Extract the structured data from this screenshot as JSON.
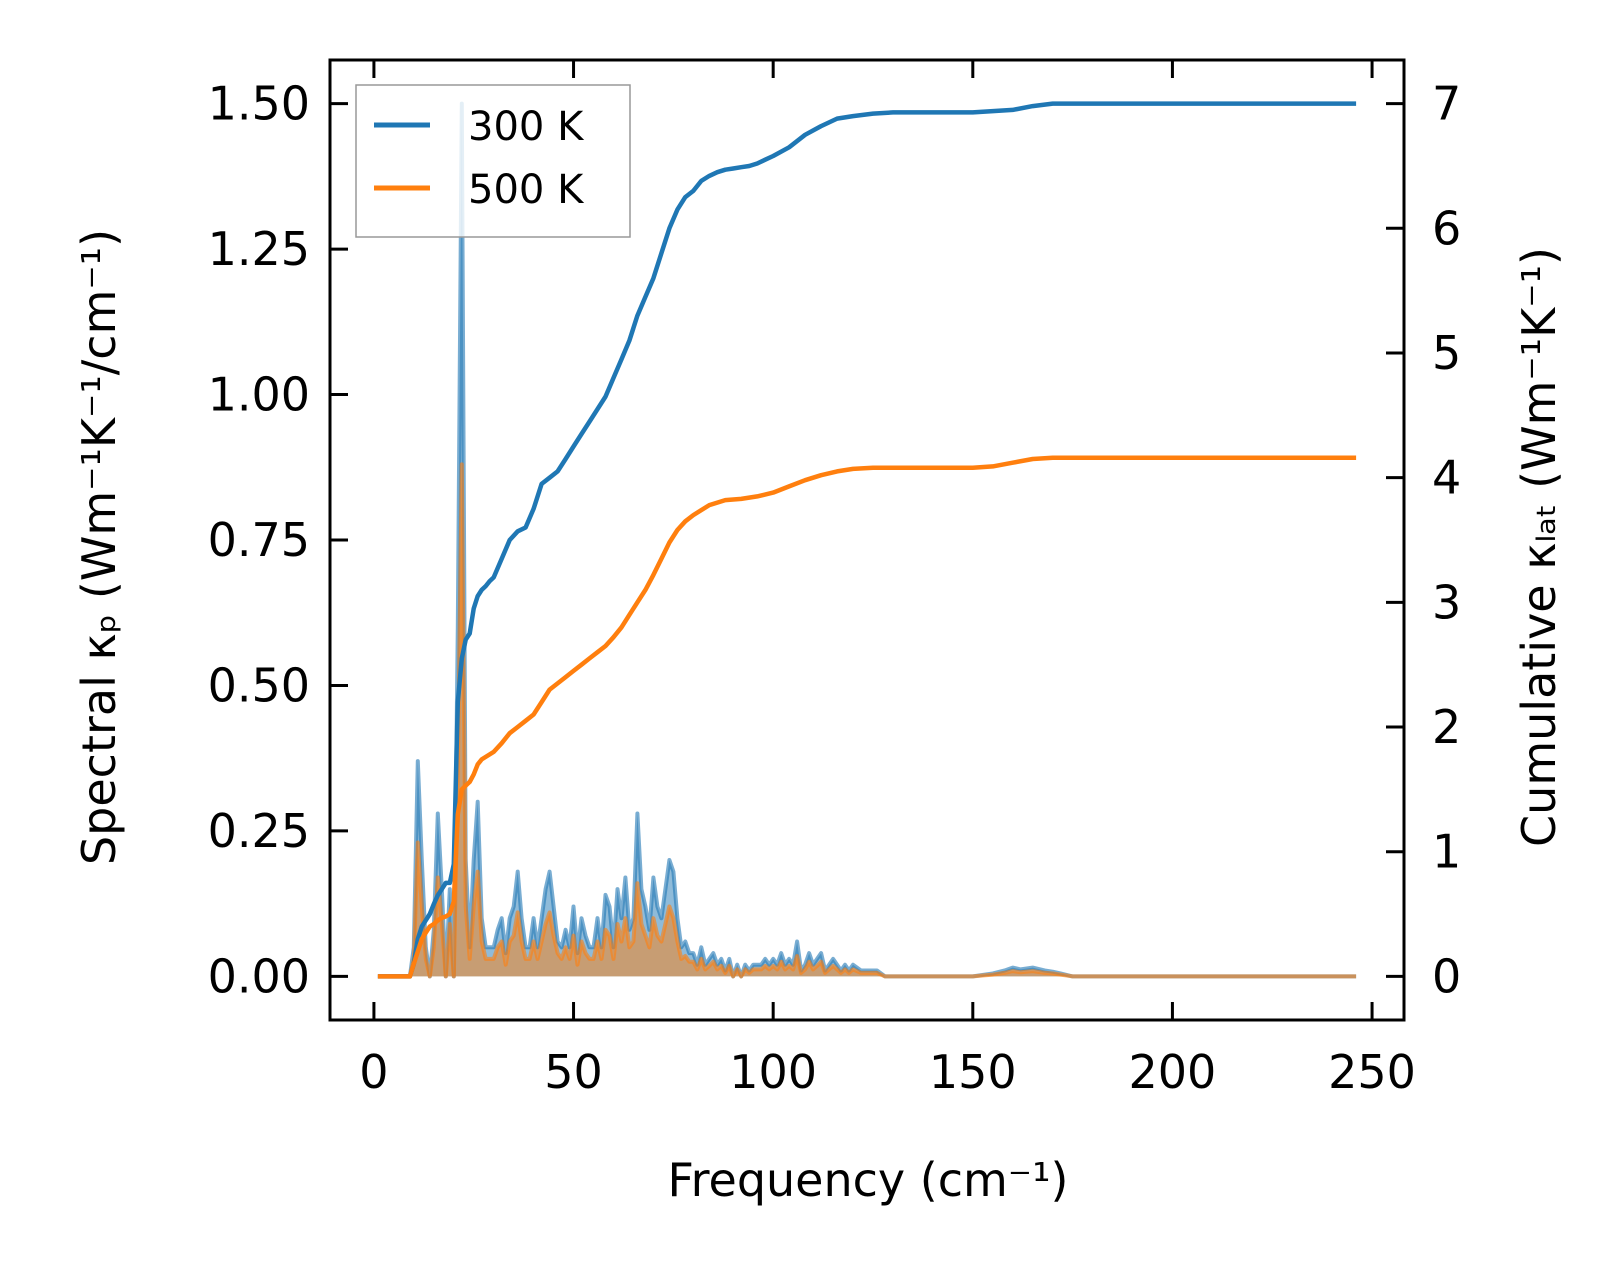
{
  "chart_data": {
    "type": "line",
    "title": "",
    "xlabel": "Frequency (cm⁻¹)",
    "ylabel_left": "Spectral κₚ (Wm⁻¹K⁻¹/cm⁻¹)",
    "ylabel_right": "Cumulative κₗₐₜ (Wm⁻¹K⁻¹)",
    "xlim": [
      -11,
      258
    ],
    "ylim_left": [
      -0.075,
      1.575
    ],
    "ylim_right": [
      -0.35,
      7.35
    ],
    "x_ticks": [
      0,
      50,
      100,
      150,
      200,
      250
    ],
    "x_tick_labels": [
      "0",
      "50",
      "100",
      "150",
      "200",
      "250"
    ],
    "y_left_ticks": [
      0,
      0.25,
      0.5,
      0.75,
      1.0,
      1.25,
      1.5
    ],
    "y_left_tick_labels": [
      "0.00",
      "0.25",
      "0.50",
      "0.75",
      "1.00",
      "1.25",
      "1.50"
    ],
    "y_right_ticks": [
      0,
      1,
      2,
      3,
      4,
      5,
      6,
      7
    ],
    "y_right_tick_labels": [
      "0",
      "1",
      "2",
      "3",
      "4",
      "5",
      "6",
      "7"
    ],
    "legend": {
      "position": "top-left",
      "entries": [
        {
          "label": "300 K",
          "color": "#1f77b4"
        },
        {
          "label": "500 K",
          "color": "#ff7f0e"
        }
      ]
    },
    "series": [
      {
        "name": "300 K",
        "color": "#1f77b4",
        "axis": "right",
        "kind": "cumulative",
        "x": [
          1,
          9,
          10,
          11,
          12,
          13,
          14,
          15,
          16,
          17,
          18,
          19,
          20,
          21,
          22,
          23,
          24,
          25,
          26,
          27,
          28,
          29,
          30,
          32,
          34,
          36,
          38,
          40,
          42,
          44,
          46,
          48,
          50,
          52,
          54,
          56,
          58,
          60,
          62,
          64,
          66,
          68,
          70,
          72,
          74,
          76,
          78,
          80,
          82,
          84,
          86,
          88,
          90,
          92,
          94,
          96,
          98,
          100,
          104,
          108,
          112,
          116,
          120,
          125,
          130,
          140,
          150,
          155,
          160,
          165,
          170,
          180,
          200,
          246
        ],
        "values": [
          0,
          0,
          0.1,
          0.3,
          0.4,
          0.45,
          0.5,
          0.58,
          0.65,
          0.7,
          0.75,
          0.75,
          0.9,
          2.2,
          2.55,
          2.7,
          2.75,
          2.95,
          3.05,
          3.1,
          3.13,
          3.17,
          3.2,
          3.35,
          3.5,
          3.57,
          3.6,
          3.75,
          3.95,
          4.0,
          4.05,
          4.15,
          4.25,
          4.35,
          4.45,
          4.55,
          4.65,
          4.8,
          4.95,
          5.1,
          5.3,
          5.45,
          5.6,
          5.8,
          6.0,
          6.15,
          6.25,
          6.3,
          6.38,
          6.42,
          6.45,
          6.47,
          6.48,
          6.49,
          6.5,
          6.52,
          6.55,
          6.58,
          6.65,
          6.75,
          6.82,
          6.88,
          6.9,
          6.92,
          6.93,
          6.93,
          6.93,
          6.94,
          6.95,
          6.98,
          7.0,
          7.0,
          7.0,
          7.0
        ]
      },
      {
        "name": "500 K",
        "color": "#ff7f0e",
        "axis": "right",
        "kind": "cumulative",
        "x": [
          1,
          9,
          10,
          11,
          12,
          13,
          14,
          15,
          16,
          17,
          18,
          19,
          20,
          21,
          22,
          23,
          24,
          25,
          26,
          27,
          28,
          30,
          32,
          34,
          36,
          38,
          40,
          42,
          44,
          46,
          48,
          50,
          52,
          54,
          56,
          58,
          60,
          62,
          64,
          66,
          68,
          70,
          72,
          74,
          76,
          78,
          80,
          84,
          88,
          92,
          96,
          100,
          104,
          108,
          112,
          116,
          120,
          125,
          130,
          140,
          150,
          155,
          160,
          165,
          170,
          180,
          200,
          246
        ],
        "values": [
          0,
          0,
          0.1,
          0.2,
          0.3,
          0.35,
          0.4,
          0.42,
          0.45,
          0.47,
          0.48,
          0.5,
          0.6,
          1.3,
          1.5,
          1.53,
          1.56,
          1.62,
          1.7,
          1.74,
          1.76,
          1.8,
          1.87,
          1.95,
          2.0,
          2.05,
          2.1,
          2.2,
          2.3,
          2.35,
          2.4,
          2.45,
          2.5,
          2.55,
          2.6,
          2.65,
          2.72,
          2.8,
          2.9,
          3.0,
          3.1,
          3.22,
          3.35,
          3.48,
          3.58,
          3.65,
          3.7,
          3.78,
          3.82,
          3.83,
          3.85,
          3.88,
          3.93,
          3.98,
          4.02,
          4.05,
          4.07,
          4.08,
          4.08,
          4.08,
          4.08,
          4.09,
          4.12,
          4.15,
          4.16,
          4.16,
          4.16,
          4.16
        ]
      },
      {
        "name": "300 K spectral",
        "color": "#1f77b4",
        "axis": "left",
        "kind": "spectral",
        "x": [
          1,
          9,
          10,
          11,
          12,
          13,
          14,
          15,
          16,
          17,
          18,
          19,
          20,
          21,
          22,
          23,
          24,
          25,
          26,
          27,
          28,
          29,
          30,
          31,
          32,
          33,
          34,
          35,
          36,
          37,
          38,
          39,
          40,
          41,
          42,
          43,
          44,
          45,
          46,
          47,
          48,
          49,
          50,
          51,
          52,
          53,
          54,
          55,
          56,
          57,
          58,
          59,
          60,
          61,
          62,
          63,
          64,
          65,
          66,
          67,
          68,
          69,
          70,
          71,
          72,
          73,
          74,
          75,
          76,
          77,
          78,
          79,
          80,
          81,
          82,
          83,
          84,
          85,
          86,
          87,
          88,
          89,
          90,
          91,
          92,
          93,
          94,
          95,
          96,
          97,
          98,
          99,
          100,
          101,
          102,
          103,
          104,
          105,
          106,
          107,
          108,
          109,
          110,
          111,
          112,
          113,
          114,
          115,
          116,
          117,
          118,
          119,
          120,
          122,
          124,
          126,
          128,
          130,
          135,
          140,
          150,
          155,
          158,
          160,
          162,
          165,
          168,
          170,
          172,
          175,
          180,
          200,
          246
        ],
        "values": [
          0,
          0,
          0.05,
          0.37,
          0.2,
          0.05,
          0.0,
          0.08,
          0.28,
          0.15,
          0.0,
          0.15,
          0.0,
          0.6,
          1.5,
          0.2,
          0.05,
          0.2,
          0.3,
          0.1,
          0.05,
          0.05,
          0.05,
          0.08,
          0.1,
          0.04,
          0.1,
          0.12,
          0.18,
          0.1,
          0.05,
          0.05,
          0.1,
          0.05,
          0.1,
          0.15,
          0.18,
          0.12,
          0.06,
          0.05,
          0.08,
          0.05,
          0.12,
          0.04,
          0.1,
          0.07,
          0.05,
          0.05,
          0.1,
          0.05,
          0.14,
          0.12,
          0.05,
          0.15,
          0.1,
          0.17,
          0.08,
          0.1,
          0.28,
          0.15,
          0.12,
          0.08,
          0.17,
          0.12,
          0.1,
          0.15,
          0.2,
          0.18,
          0.1,
          0.05,
          0.06,
          0.04,
          0.04,
          0.02,
          0.05,
          0.02,
          0.03,
          0.04,
          0.02,
          0.03,
          0.01,
          0.03,
          0.0,
          0.02,
          0.0,
          0.02,
          0.01,
          0.02,
          0.02,
          0.02,
          0.03,
          0.02,
          0.03,
          0.02,
          0.04,
          0.02,
          0.03,
          0.02,
          0.06,
          0.01,
          0.02,
          0.04,
          0.02,
          0.03,
          0.04,
          0.01,
          0.02,
          0.03,
          0.02,
          0.01,
          0.02,
          0.01,
          0.02,
          0.01,
          0.01,
          0.01,
          0.0,
          0.0,
          0.0,
          0.0,
          0.0,
          0.005,
          0.01,
          0.015,
          0.012,
          0.015,
          0.01,
          0.008,
          0.005,
          0.0,
          0.0,
          0.0,
          0.0
        ]
      },
      {
        "name": "500 K spectral",
        "color": "#ff7f0e",
        "axis": "left",
        "kind": "spectral",
        "x": [
          1,
          9,
          10,
          11,
          12,
          13,
          14,
          15,
          16,
          17,
          18,
          19,
          20,
          21,
          22,
          23,
          24,
          25,
          26,
          27,
          28,
          29,
          30,
          31,
          32,
          33,
          34,
          35,
          36,
          37,
          38,
          39,
          40,
          41,
          42,
          43,
          44,
          45,
          46,
          47,
          48,
          49,
          50,
          51,
          52,
          53,
          54,
          55,
          56,
          57,
          58,
          59,
          60,
          61,
          62,
          63,
          64,
          65,
          66,
          67,
          68,
          69,
          70,
          71,
          72,
          73,
          74,
          75,
          76,
          77,
          78,
          79,
          80,
          81,
          82,
          83,
          84,
          85,
          86,
          87,
          88,
          89,
          90,
          91,
          92,
          93,
          94,
          95,
          96,
          97,
          98,
          99,
          100,
          101,
          102,
          103,
          104,
          105,
          106,
          107,
          108,
          109,
          110,
          111,
          112,
          113,
          114,
          115,
          116,
          117,
          118,
          119,
          120,
          122,
          124,
          126,
          128,
          130,
          135,
          140,
          150,
          155,
          158,
          160,
          162,
          165,
          168,
          170,
          172,
          175,
          180,
          200,
          246
        ],
        "values": [
          0,
          0,
          0.03,
          0.23,
          0.12,
          0.03,
          0.0,
          0.05,
          0.17,
          0.09,
          0.0,
          0.09,
          0.0,
          0.35,
          0.88,
          0.12,
          0.03,
          0.12,
          0.18,
          0.06,
          0.03,
          0.03,
          0.03,
          0.05,
          0.06,
          0.02,
          0.06,
          0.07,
          0.11,
          0.06,
          0.03,
          0.03,
          0.06,
          0.03,
          0.06,
          0.09,
          0.11,
          0.07,
          0.04,
          0.03,
          0.05,
          0.03,
          0.07,
          0.02,
          0.06,
          0.04,
          0.03,
          0.03,
          0.06,
          0.03,
          0.08,
          0.07,
          0.03,
          0.09,
          0.06,
          0.1,
          0.05,
          0.06,
          0.16,
          0.09,
          0.07,
          0.05,
          0.1,
          0.07,
          0.06,
          0.09,
          0.12,
          0.1,
          0.06,
          0.03,
          0.035,
          0.025,
          0.025,
          0.012,
          0.03,
          0.012,
          0.018,
          0.025,
          0.012,
          0.018,
          0.006,
          0.018,
          0.0,
          0.012,
          0.0,
          0.012,
          0.006,
          0.012,
          0.012,
          0.012,
          0.018,
          0.012,
          0.018,
          0.012,
          0.025,
          0.012,
          0.018,
          0.012,
          0.035,
          0.006,
          0.012,
          0.025,
          0.012,
          0.018,
          0.025,
          0.006,
          0.012,
          0.018,
          0.012,
          0.006,
          0.012,
          0.006,
          0.012,
          0.006,
          0.006,
          0.006,
          0.0,
          0.0,
          0.0,
          0.0,
          0.0,
          0.003,
          0.006,
          0.009,
          0.007,
          0.009,
          0.006,
          0.005,
          0.003,
          0.0,
          0.0,
          0.0,
          0.0
        ]
      }
    ]
  }
}
